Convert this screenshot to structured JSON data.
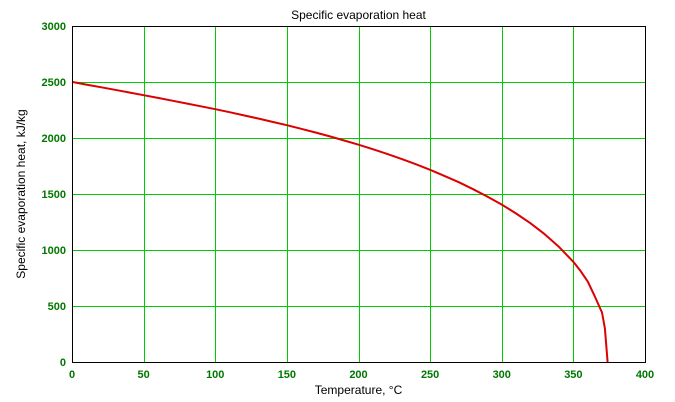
{
  "chart_data": {
    "type": "line",
    "title": "Specific evaporation heat",
    "xlabel": "Temperature, °C",
    "ylabel": "Specific evaporation heat, kJ/kg",
    "xlim": [
      0,
      400
    ],
    "ylim": [
      0,
      3000
    ],
    "xticks": [
      0,
      50,
      100,
      150,
      200,
      250,
      300,
      350,
      400
    ],
    "yticks": [
      0,
      500,
      1000,
      1500,
      2000,
      2500,
      3000
    ],
    "xtick_labels": [
      "0",
      "50",
      "100",
      "150",
      "200",
      "250",
      "300",
      "350",
      "400"
    ],
    "ytick_labels": [
      "0",
      "500",
      "1000",
      "1500",
      "2000",
      "2500",
      "3000"
    ],
    "grid": true,
    "legend": false,
    "colors": {
      "grid": "#00cc00",
      "tick_labels": "#007700",
      "series": "#dd0000",
      "frame": "#000000"
    },
    "series": [
      {
        "x": [
          0,
          10,
          20,
          30,
          40,
          50,
          60,
          70,
          80,
          90,
          100,
          110,
          120,
          130,
          140,
          150,
          160,
          170,
          180,
          190,
          200,
          210,
          220,
          230,
          240,
          250,
          260,
          270,
          280,
          290,
          300,
          310,
          320,
          330,
          340,
          350,
          355,
          360,
          365,
          370,
          372,
          373.9
        ],
        "y": [
          2501,
          2477,
          2454,
          2430,
          2406,
          2382,
          2358,
          2333,
          2308,
          2283,
          2257,
          2230,
          2202,
          2174,
          2144,
          2114,
          2082,
          2049,
          2014,
          1978,
          1940,
          1900,
          1858,
          1813,
          1766,
          1716,
          1662,
          1605,
          1543,
          1477,
          1405,
          1326,
          1239,
          1141,
          1028,
          894,
          813,
          720,
          584,
          442,
          300,
          0
        ]
      }
    ]
  }
}
